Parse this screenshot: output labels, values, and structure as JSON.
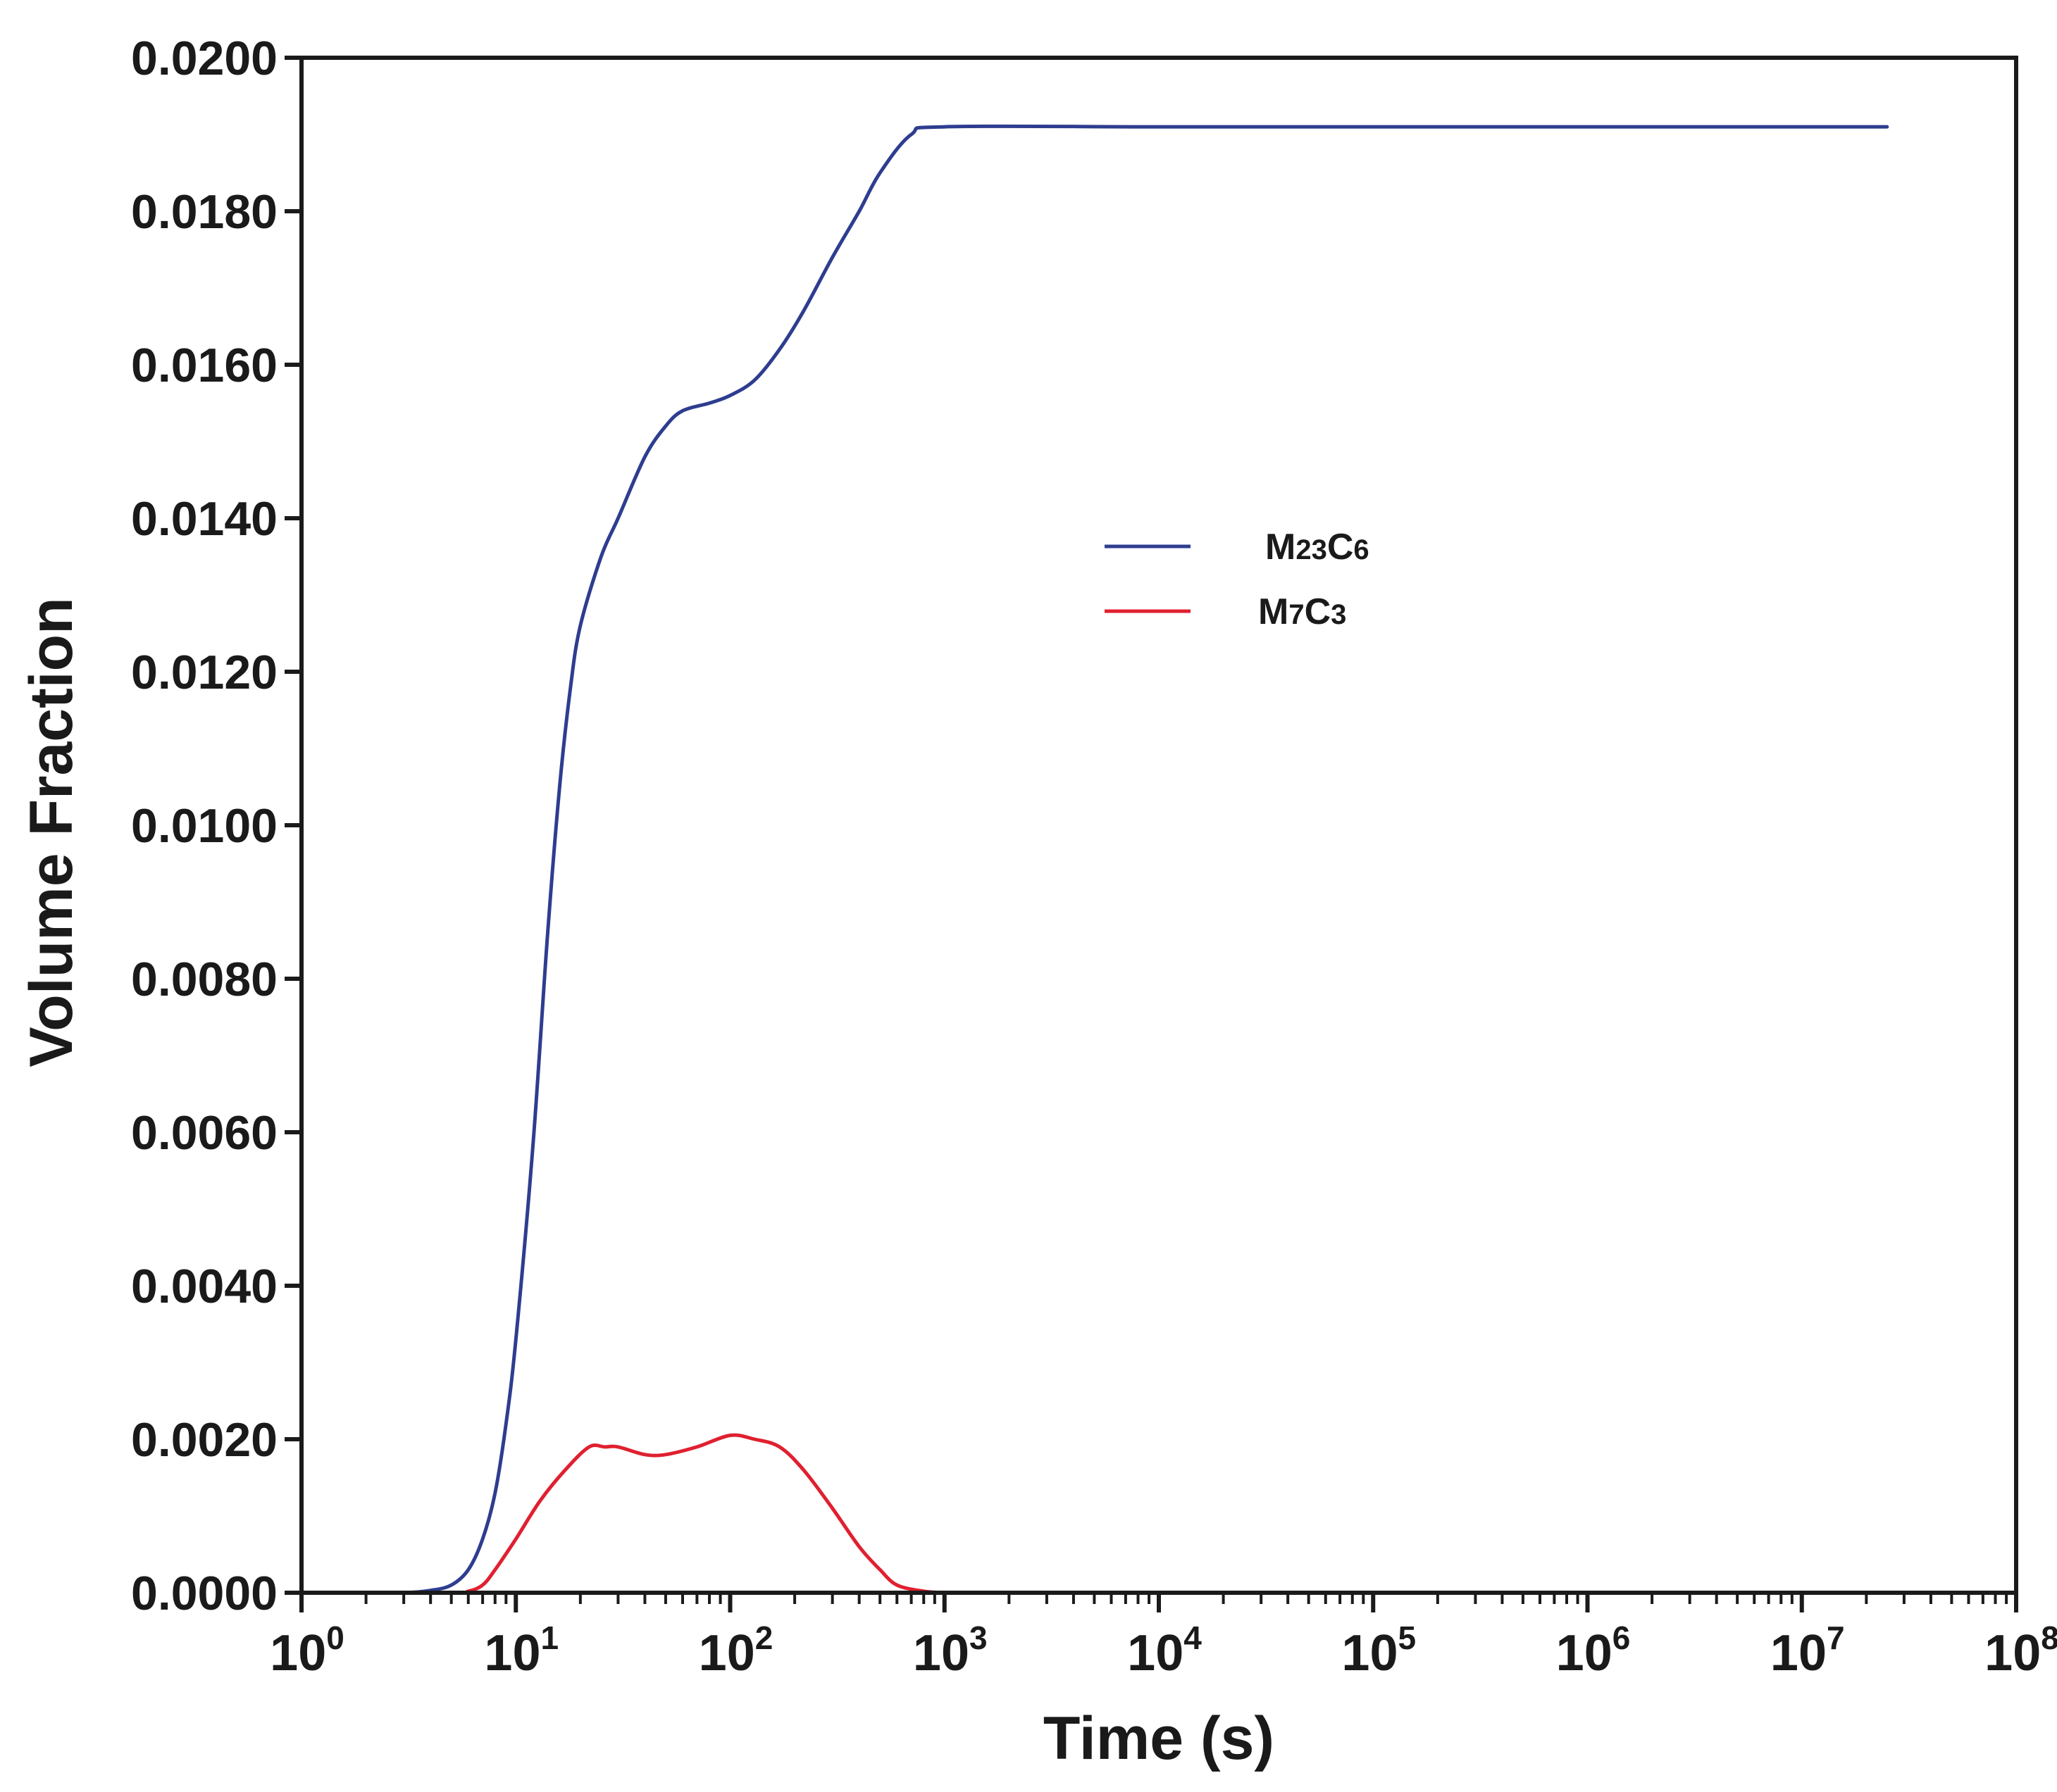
{
  "chart_data": {
    "type": "line",
    "title": "",
    "xlabel": "Time (s)",
    "ylabel": "Volume Fraction",
    "xscale": "log",
    "xlim": [
      1,
      100000000
    ],
    "ylim": [
      0,
      0.02
    ],
    "x_ticks": [
      {
        "base": "10",
        "exp": "0"
      },
      {
        "base": "10",
        "exp": "1"
      },
      {
        "base": "10",
        "exp": "2"
      },
      {
        "base": "10",
        "exp": "3"
      },
      {
        "base": "10",
        "exp": "4"
      },
      {
        "base": "10",
        "exp": "5"
      },
      {
        "base": "10",
        "exp": "6"
      },
      {
        "base": "10",
        "exp": "7"
      },
      {
        "base": "10",
        "exp": "8"
      }
    ],
    "y_ticks": [
      "0.0000",
      "0.0020",
      "0.0040",
      "0.0060",
      "0.0080",
      "0.0100",
      "0.0120",
      "0.0140",
      "0.0160",
      "0.0180",
      "0.0200"
    ],
    "legend_position": "center",
    "series": [
      {
        "name": "M23C6",
        "label_main": [
          "M",
          "C"
        ],
        "label_sub": [
          "23",
          "6"
        ],
        "color": "#2e3d8f",
        "points": [
          [
            1,
            0.0
          ],
          [
            2,
            0.0
          ],
          [
            3,
            0.0
          ],
          [
            4,
            3e-05
          ],
          [
            5,
            0.0001
          ],
          [
            6,
            0.0003
          ],
          [
            7,
            0.0007
          ],
          [
            8,
            0.0013
          ],
          [
            9,
            0.0022
          ],
          [
            10,
            0.0033
          ],
          [
            12,
            0.0058
          ],
          [
            14,
            0.0085
          ],
          [
            16,
            0.0105
          ],
          [
            18,
            0.0118
          ],
          [
            20,
            0.0126
          ],
          [
            25,
            0.0135
          ],
          [
            30,
            0.014
          ],
          [
            40,
            0.0148
          ],
          [
            50,
            0.0152
          ],
          [
            60,
            0.0154
          ],
          [
            80,
            0.0155
          ],
          [
            100,
            0.0156
          ],
          [
            130,
            0.0158
          ],
          [
            170,
            0.0162
          ],
          [
            220,
            0.0167
          ],
          [
            300,
            0.0174
          ],
          [
            400,
            0.018
          ],
          [
            500,
            0.0185
          ],
          [
            700,
            0.019
          ],
          [
            1000,
            0.0191
          ],
          [
            10000,
            0.0191
          ],
          [
            100000,
            0.0191
          ],
          [
            1000000,
            0.0191
          ],
          [
            25000000,
            0.0191
          ]
        ]
      },
      {
        "name": "M7C3",
        "label_main": [
          "M",
          "C"
        ],
        "label_sub": [
          "7",
          "3"
        ],
        "color": "#e02030",
        "points": [
          [
            1,
            0.0
          ],
          [
            5,
            0.0
          ],
          [
            6,
            2e-05
          ],
          [
            7,
            0.0001
          ],
          [
            8,
            0.0003
          ],
          [
            10,
            0.0007
          ],
          [
            13,
            0.0012
          ],
          [
            17,
            0.0016
          ],
          [
            22,
            0.0019
          ],
          [
            26,
            0.0019
          ],
          [
            30,
            0.0019
          ],
          [
            40,
            0.0018
          ],
          [
            50,
            0.0018
          ],
          [
            70,
            0.0019
          ],
          [
            100,
            0.00205
          ],
          [
            130,
            0.002
          ],
          [
            170,
            0.0019
          ],
          [
            220,
            0.0016
          ],
          [
            300,
            0.0011
          ],
          [
            400,
            0.0006
          ],
          [
            500,
            0.0003
          ],
          [
            600,
            0.0001
          ],
          [
            800,
            2e-05
          ],
          [
            1000,
            0.0
          ]
        ]
      }
    ]
  }
}
